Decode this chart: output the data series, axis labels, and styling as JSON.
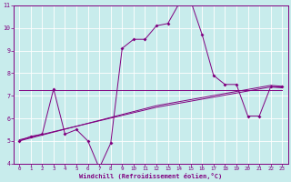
{
  "xlabel": "Windchill (Refroidissement éolien,°C)",
  "bg_color": "#c8ecec",
  "grid_color": "#ffffff",
  "line_color": "#800080",
  "x_main": [
    0,
    1,
    2,
    3,
    4,
    5,
    6,
    7,
    8,
    9,
    10,
    11,
    12,
    13,
    14,
    15,
    16,
    17,
    18,
    19,
    20,
    21,
    22,
    23
  ],
  "y_main": [
    5.0,
    5.2,
    5.3,
    7.3,
    5.3,
    5.5,
    5.0,
    3.8,
    4.9,
    9.1,
    9.5,
    9.5,
    10.1,
    10.2,
    11.1,
    11.2,
    9.7,
    7.9,
    7.5,
    7.5,
    6.1,
    6.1,
    7.4,
    7.4
  ],
  "y_lin1": [
    5.0,
    5.13,
    5.26,
    5.39,
    5.52,
    5.65,
    5.78,
    5.91,
    6.04,
    6.17,
    6.3,
    6.43,
    6.56,
    6.65,
    6.74,
    6.83,
    6.92,
    7.01,
    7.1,
    7.19,
    7.28,
    7.37,
    7.46,
    7.42
  ],
  "y_lin2": [
    5.05,
    5.17,
    5.29,
    5.41,
    5.53,
    5.65,
    5.77,
    5.89,
    6.01,
    6.13,
    6.25,
    6.37,
    6.49,
    6.58,
    6.67,
    6.76,
    6.85,
    6.94,
    7.03,
    7.12,
    7.21,
    7.3,
    7.39,
    7.35
  ],
  "y_flat": [
    7.25,
    7.25,
    7.25,
    7.25,
    7.25,
    7.25,
    7.25,
    7.25,
    7.25,
    7.25,
    7.25,
    7.25,
    7.25,
    7.25,
    7.25,
    7.25,
    7.25,
    7.25,
    7.25,
    7.25,
    7.25,
    7.25,
    7.25,
    7.25
  ],
  "xlim": [
    -0.5,
    23.5
  ],
  "ylim": [
    4,
    11
  ],
  "xticks": [
    0,
    1,
    2,
    3,
    4,
    5,
    6,
    7,
    8,
    9,
    10,
    11,
    12,
    13,
    14,
    15,
    16,
    17,
    18,
    19,
    20,
    21,
    22,
    23
  ],
  "yticks": [
    4,
    5,
    6,
    7,
    8,
    9,
    10,
    11
  ]
}
